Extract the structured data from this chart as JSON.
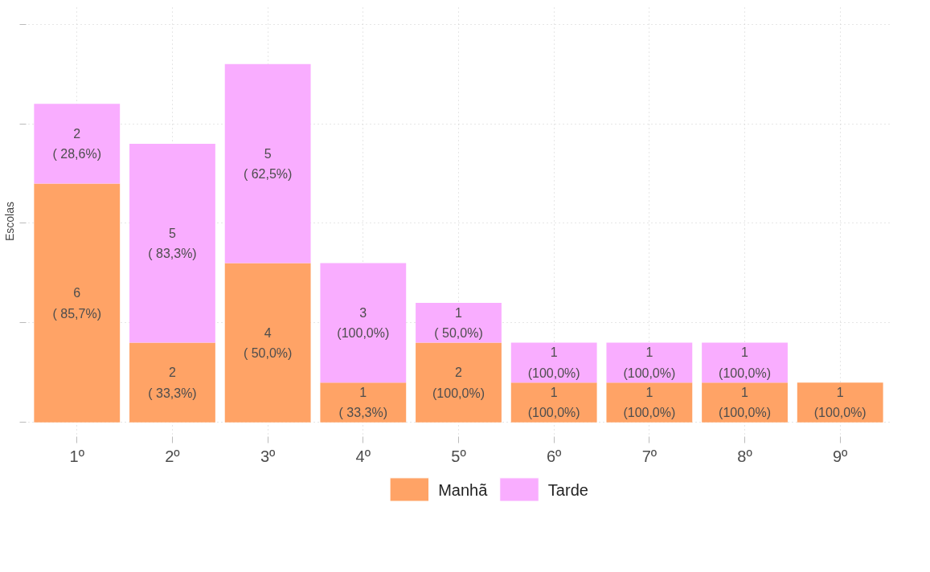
{
  "chart_data": {
    "type": "bar",
    "stacked": true,
    "ylabel": "Escolas",
    "categories": [
      "1º",
      "2º",
      "3º",
      "4º",
      "5º",
      "6º",
      "7º",
      "8º",
      "9º"
    ],
    "series": [
      {
        "name": "Manhã",
        "color": "#ffa366",
        "values": [
          6,
          2,
          4,
          1,
          2,
          1,
          1,
          1,
          1
        ],
        "value_labels": [
          "6\n( 85,7%)",
          "2\n( 33,3%)",
          "4\n( 50,0%)",
          "1\n( 33,3%)",
          "2\n(100,0%)",
          "1\n(100,0%)",
          "1\n(100,0%)",
          "1\n(100,0%)",
          "1\n(100,0%)"
        ]
      },
      {
        "name": "Tarde",
        "color": "#f9adff",
        "values": [
          2,
          5,
          5,
          3,
          1,
          1,
          1,
          1,
          null
        ],
        "value_labels": [
          "2\n( 28,6%)",
          "5\n( 83,3%)",
          "5\n( 62,5%)",
          "3\n(100,0%)",
          "1\n( 50,0%)",
          "1\n(100,0%)",
          "1\n(100,0%)",
          "1\n(100,0%)",
          null
        ]
      }
    ],
    "ylim": [
      -0.4,
      10.5
    ],
    "yticks": [
      {
        "value": 0,
        "label": null
      },
      {
        "value": 2.5,
        "label": null
      },
      {
        "value": 5,
        "label": null
      },
      {
        "value": 7.5,
        "label": null
      },
      {
        "value": 10,
        "label": null
      }
    ],
    "grid": true,
    "legend": "bottom",
    "tick_labels": "x"
  }
}
